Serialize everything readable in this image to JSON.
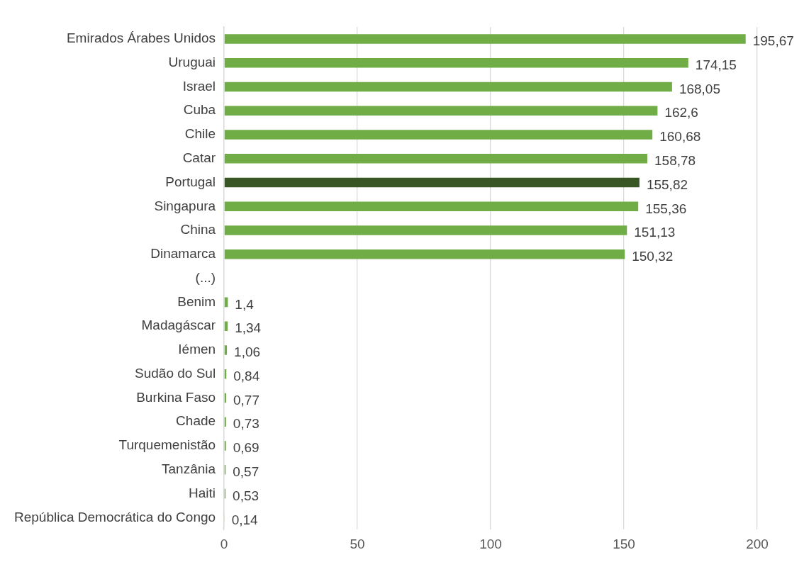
{
  "chart_data": {
    "type": "bar",
    "orientation": "horizontal",
    "categories": [
      "Emirados Árabes Unidos",
      "Uruguai",
      "Israel",
      "Cuba",
      "Chile",
      "Catar",
      "Portugal",
      "Singapura",
      "China",
      "Dinamarca",
      "(...)",
      "Benim",
      "Madagáscar",
      "Iémen",
      "Sudão do Sul",
      "Burkina Faso",
      "Chade",
      "Turquemenistão",
      "Tanzânia",
      "Haiti",
      "República Democrática do Congo"
    ],
    "values": [
      195.67,
      174.15,
      168.05,
      162.6,
      160.68,
      158.78,
      155.82,
      155.36,
      151.13,
      150.32,
      null,
      1.4,
      1.34,
      1.06,
      0.84,
      0.77,
      0.73,
      0.69,
      0.57,
      0.53,
      0.14
    ],
    "value_labels": [
      "195,67",
      "174,15",
      "168,05",
      "162,6",
      "160,68",
      "158,78",
      "155,82",
      "155,36",
      "151,13",
      "150,32",
      null,
      "1,4",
      "1,34",
      "1,06",
      "0,84",
      "0,77",
      "0,73",
      "0,69",
      "0,57",
      "0,53",
      "0,14"
    ],
    "colors": [
      "#70ad47",
      "#70ad47",
      "#70ad47",
      "#70ad47",
      "#70ad47",
      "#70ad47",
      "#375623",
      "#70ad47",
      "#70ad47",
      "#70ad47",
      "#70ad47",
      "#70ad47",
      "#70ad47",
      "#70ad47",
      "#70ad47",
      "#70ad47",
      "#70ad47",
      "#70ad47",
      "#70ad47",
      "#70ad47",
      "#70ad47"
    ],
    "xlim": [
      0,
      200
    ],
    "xticks": [
      0,
      50,
      100,
      150,
      200
    ],
    "grid": "x"
  }
}
